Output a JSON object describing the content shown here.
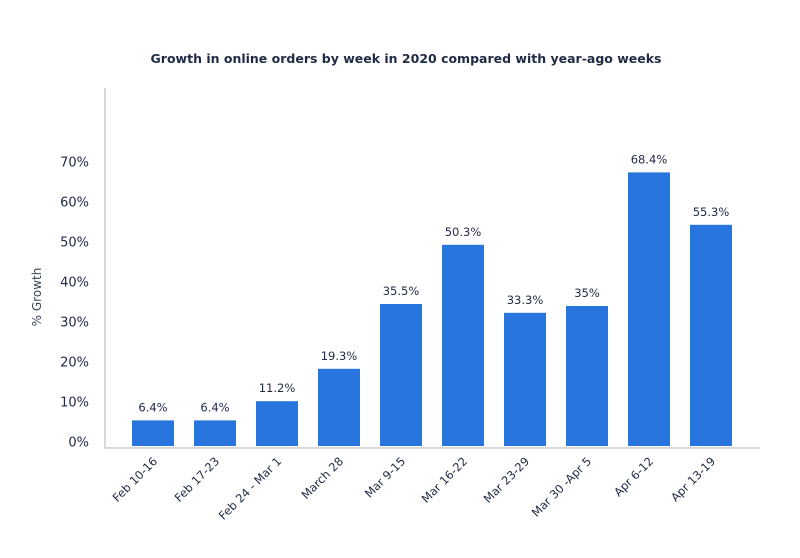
{
  "chart_data": {
    "type": "bar",
    "title": "Growth in online orders by week in 2020 compared with year-ago weeks",
    "xlabel": "",
    "ylabel": "% Growth",
    "categories": [
      "Feb 10-16",
      "Feb 17-23",
      "Feb 24 - Mar 1",
      "March 28",
      "Mar 9-15",
      "Mar 16-22",
      "Mar 23-29",
      "Mar 30 -Apr 5",
      "Apr 6-12",
      "Apr 13-19"
    ],
    "values": [
      6.4,
      6.4,
      11.2,
      19.3,
      35.5,
      50.3,
      33.3,
      35,
      68.4,
      55.3
    ],
    "data_labels": [
      "6.4%",
      "6.4%",
      "11.2%",
      "19.3%",
      "35.5%",
      "50.3%",
      "33.3%",
      "35%",
      "68.4%",
      "55.3%"
    ],
    "yticks": [
      0,
      10,
      20,
      30,
      40,
      50,
      60,
      70
    ],
    "ytick_labels": [
      "0%",
      "10%",
      "20%",
      "30%",
      "40%",
      "50%",
      "60%",
      "70%"
    ],
    "ylim": [
      0,
      70
    ],
    "grid": false,
    "legend": "none",
    "bar_color": "#2876dd",
    "axis_color": "#d9d9d9"
  }
}
